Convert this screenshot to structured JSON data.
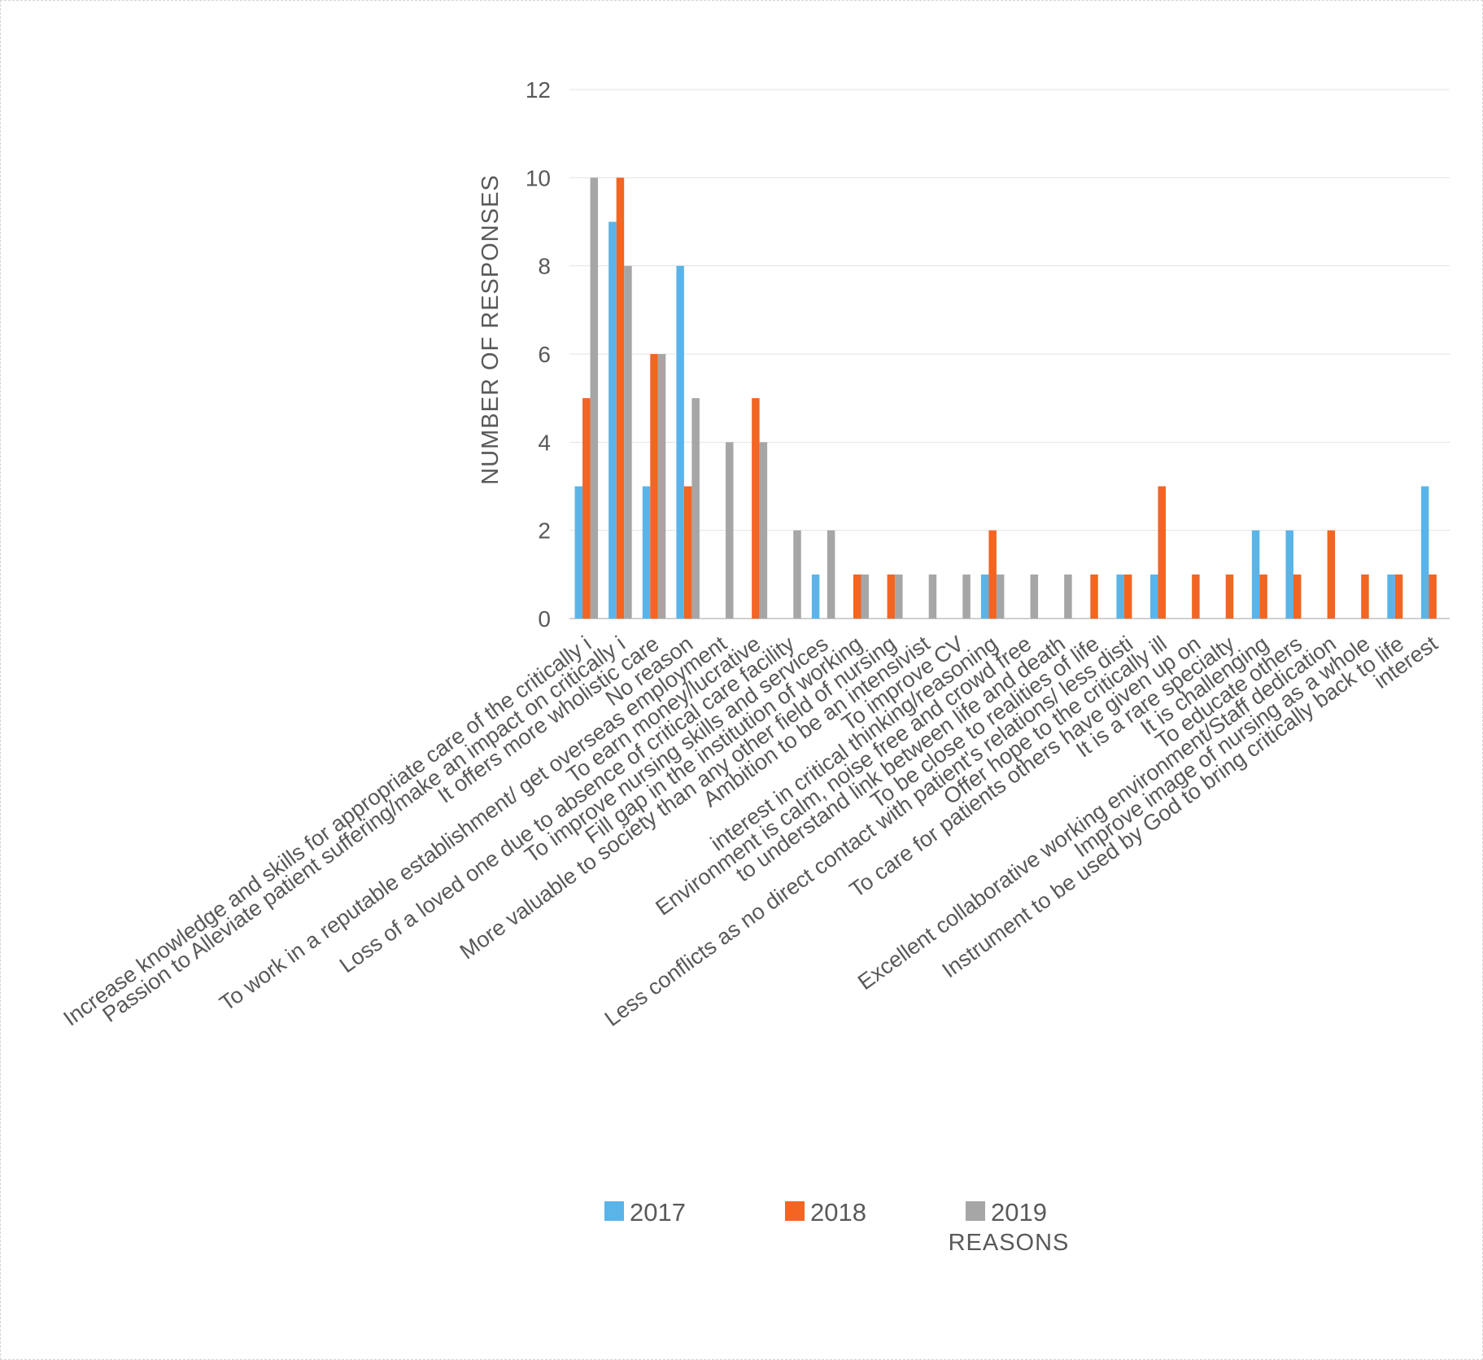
{
  "chart_data": {
    "type": "bar",
    "title": "",
    "xlabel": "REASONS",
    "ylabel": "NUMBER OF RESPONSES",
    "ylim": [
      0,
      12
    ],
    "yticks": [
      0,
      2,
      4,
      6,
      8,
      10,
      12
    ],
    "grid": true,
    "legend_position": "bottom",
    "categories": [
      "Increase knowledge and skills for appropriate care of the critically i",
      "Passion to Alleviate patient suffering/make an impact on critically i",
      "It offers more wholistic care",
      "No reason",
      "To work in a reputable establishment/ get overseas employment",
      "To earn money/lucrative",
      "Loss of a loved one due to absence of critical care facility",
      "To improve nursing skills and services",
      "Fill gap in the institution of working",
      "More valuable to society than any other field of nursing",
      "Ambition to be an intensivist",
      "To improve CV",
      "interest in critical thinking/reasoning",
      "Environment is calm, noise free and crowd free",
      "to understand link between life and death",
      "To be close to realities of life",
      "Less conflicts as no direct contact with patient's relations/ less disti",
      "Offer hope to the critically ill",
      "To care for patients others have given up on",
      "It is a rare specialty",
      "It is challenging",
      "To educate others",
      "Excellent collaborative working environment/Staff dedication",
      "Improve image of nursing as a whole",
      "Instrument to be used by God to bring critically back to life",
      "interest"
    ],
    "series": [
      {
        "name": "2017",
        "color": "#5AB4E8",
        "values": [
          3,
          9,
          3,
          8,
          0,
          0,
          0,
          1,
          0,
          0,
          0,
          0,
          1,
          0,
          0,
          0,
          1,
          1,
          0,
          0,
          2,
          2,
          0,
          0,
          1,
          3
        ]
      },
      {
        "name": "2018",
        "color": "#F26522",
        "values": [
          5,
          10,
          6,
          3,
          0,
          5,
          0,
          0,
          1,
          1,
          0,
          0,
          2,
          0,
          0,
          1,
          1,
          3,
          1,
          1,
          1,
          1,
          2,
          1,
          1,
          1
        ]
      },
      {
        "name": "2019",
        "color": "#A6A6A6",
        "values": [
          10,
          8,
          6,
          5,
          4,
          4,
          2,
          2,
          1,
          1,
          1,
          1,
          1,
          1,
          1,
          0,
          0,
          0,
          0,
          0,
          0,
          0,
          0,
          0,
          0,
          0
        ]
      }
    ]
  }
}
